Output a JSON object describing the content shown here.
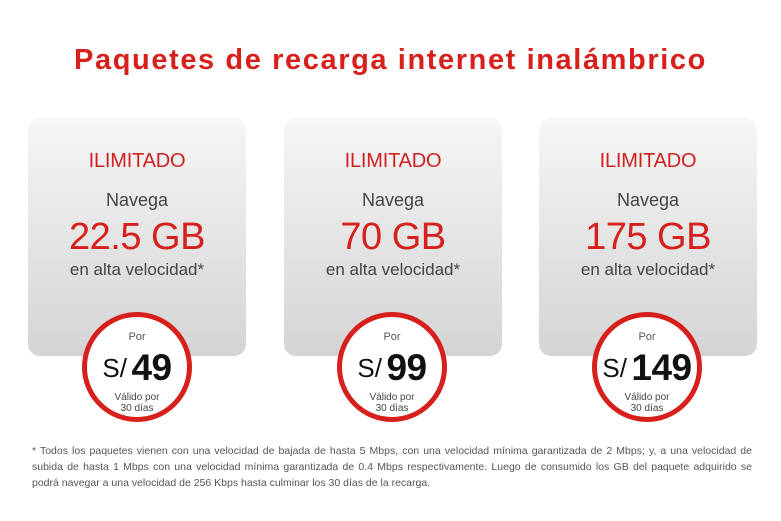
{
  "title": "Paquetes de recarga internet inalámbrico",
  "packages": [
    {
      "plan": "ILIMITADO",
      "navega": "Navega",
      "data": "22.5 GB",
      "speed": "en alta velocidad*",
      "por": "Por",
      "currency": "S/",
      "price": "49",
      "valid_line1": "Válido por",
      "valid_line2": "30 días"
    },
    {
      "plan": "ILIMITADO",
      "navega": "Navega",
      "data": "70 GB",
      "speed": "en alta velocidad*",
      "por": "Por",
      "currency": "S/",
      "price": "99",
      "valid_line1": "Válido por",
      "valid_line2": "30 días"
    },
    {
      "plan": "ILIMITADO",
      "navega": "Navega",
      "data": "175 GB",
      "speed": "en alta velocidad*",
      "por": "Por",
      "currency": "S/",
      "price": "149",
      "valid_line1": "Válido por",
      "valid_line2": "30 días"
    }
  ],
  "footnote": "* Todos los paquetes vienen con una velocidad de bajada de hasta 5 Mbps, con una velocidad mínima garantizada de 2 Mbps; y, a una velocidad de subida de hasta 1 Mbps con una velocidad mínima garantizada de 0.4 Mbps respectivamente. Luego de consumido los GB del paquete adquirido se podrá navegar a una velocidad de 256 Kbps hasta culminar los 30 días de la recarga.",
  "colors": {
    "accent": "#d7201c",
    "card_top": "#f6f6f6",
    "card_bottom": "#d4d4d4"
  }
}
